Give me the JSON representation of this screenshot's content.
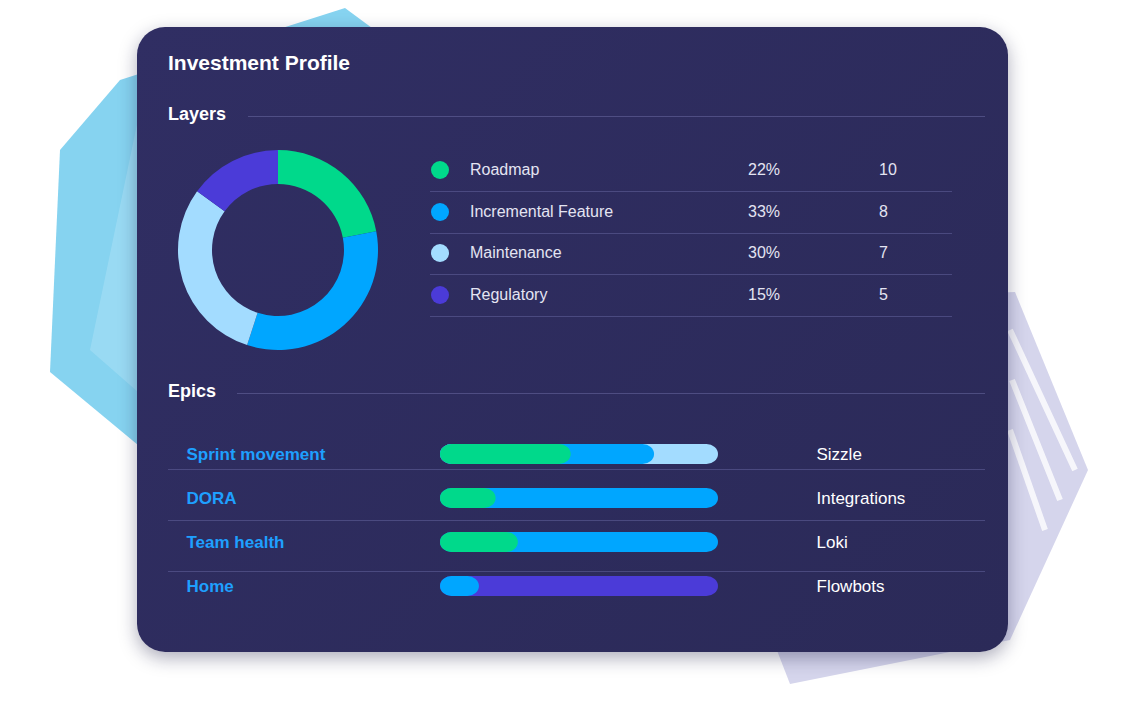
{
  "title": "Investment Profile",
  "chart_data": [
    {
      "type": "pie",
      "title": "Layers",
      "categories": [
        "Roadmap",
        "Incremental Feature",
        "Maintenance",
        "Regulatory"
      ],
      "values": [
        22,
        33,
        30,
        15
      ],
      "value_labels": [
        "22%",
        "33%",
        "30%",
        "15%"
      ],
      "counts": [
        10,
        8,
        7,
        5
      ],
      "colors": [
        "#00d98b",
        "#00a6ff",
        "#a3dcff",
        "#4b3bd8"
      ],
      "data_labels": true,
      "legend": "right"
    },
    {
      "type": "bar",
      "title": "Epics",
      "orientation": "horizontal",
      "stacked": true,
      "categories": [
        "Sprint movement",
        "DORA",
        "Team health",
        "Home"
      ],
      "teams": [
        "Sizzle",
        "Integrations",
        "Loki",
        "Flowbots"
      ],
      "series": [
        {
          "name": "Roadmap",
          "color": "#00d98b",
          "values": [
            47,
            20,
            28,
            0
          ]
        },
        {
          "name": "Incremental Feature",
          "color": "#00a6ff",
          "values": [
            30,
            80,
            72,
            14
          ]
        },
        {
          "name": "Maintenance",
          "color": "#a3dcff",
          "values": [
            23,
            0,
            0,
            0
          ]
        },
        {
          "name": "Regulatory",
          "color": "#4b3bd8",
          "values": [
            0,
            0,
            0,
            86
          ]
        }
      ],
      "xlim": [
        0,
        100
      ],
      "tick_labels": "y"
    }
  ]
}
